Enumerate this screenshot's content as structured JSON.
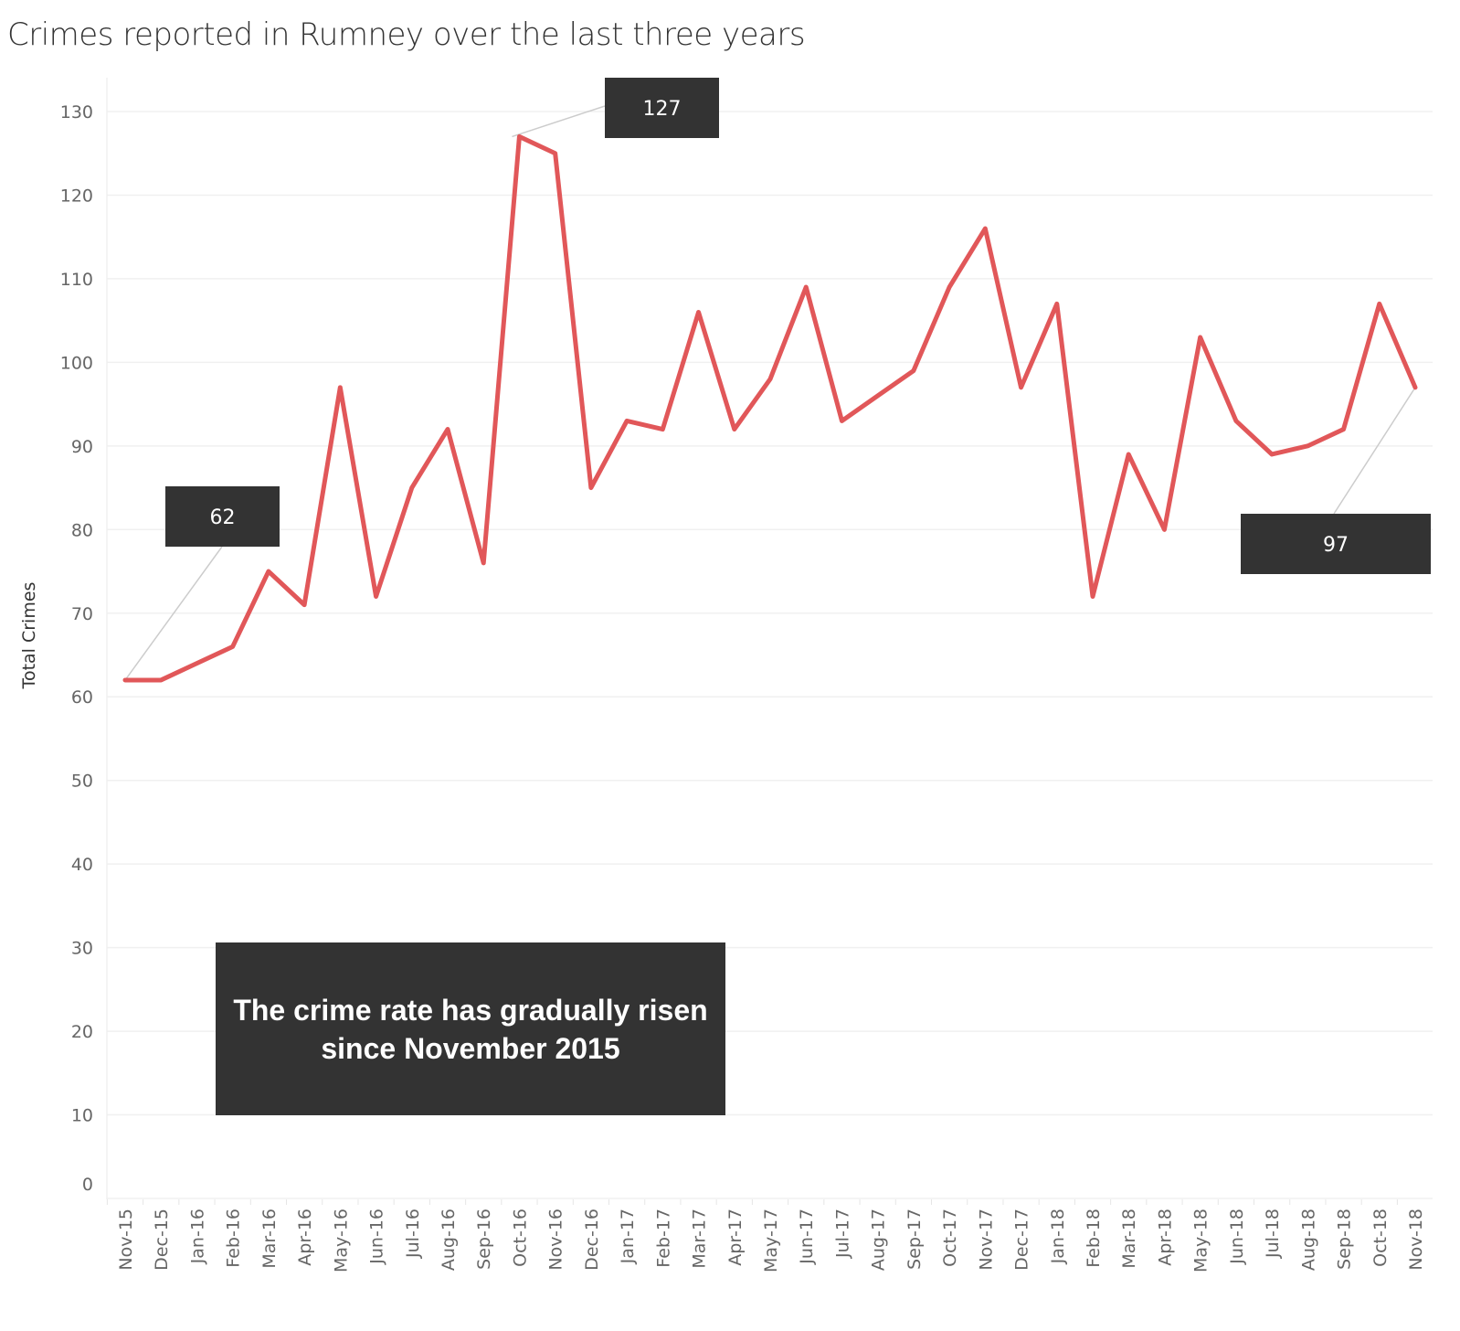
{
  "chart_data": {
    "type": "line",
    "title": "Crimes reported in Rumney over the last three years",
    "xlabel": "",
    "ylabel": "Total Crimes",
    "ylim": [
      0,
      130
    ],
    "yticks": [
      0,
      10,
      20,
      30,
      40,
      50,
      60,
      70,
      80,
      90,
      100,
      110,
      120,
      130
    ],
    "grid": true,
    "line_color": "#e15759",
    "categories": [
      "Nov-15",
      "Dec-15",
      "Jan-16",
      "Feb-16",
      "Mar-16",
      "Apr-16",
      "May-16",
      "Jun-16",
      "Jul-16",
      "Aug-16",
      "Sep-16",
      "Oct-16",
      "Nov-16",
      "Dec-16",
      "Jan-17",
      "Feb-17",
      "Mar-17",
      "Apr-17",
      "May-17",
      "Jun-17",
      "Jul-17",
      "Aug-17",
      "Sep-17",
      "Oct-17",
      "Nov-17",
      "Dec-17",
      "Jan-18",
      "Feb-18",
      "Mar-18",
      "Apr-18",
      "May-18",
      "Jun-18",
      "Jul-18",
      "Aug-18",
      "Sep-18",
      "Oct-18",
      "Nov-18"
    ],
    "values": [
      62,
      62,
      64,
      66,
      75,
      71,
      97,
      72,
      85,
      92,
      76,
      127,
      125,
      85,
      93,
      92,
      106,
      92,
      98,
      109,
      93,
      96,
      99,
      109,
      116,
      97,
      107,
      72,
      89,
      80,
      103,
      93,
      89,
      90,
      92,
      107,
      97
    ],
    "annotations": [
      {
        "category": "Nov-15",
        "label": "62"
      },
      {
        "category": "Oct-16",
        "label": "127"
      },
      {
        "category": "Nov-18",
        "label": "97"
      }
    ],
    "callout": "The crime rate has gradually risen since November 2015"
  }
}
